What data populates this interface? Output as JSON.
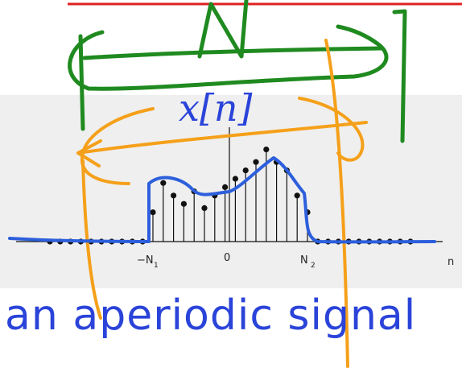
{
  "slide": {
    "signal_label": "x[n]",
    "caption": "an aperiodic signal",
    "caption_color": "#2a43d9",
    "label_color": "#2a43d9"
  },
  "chart_data": {
    "type": "stem",
    "x_axis_label": "n",
    "ticks": [
      {
        "main": "−N",
        "sub": "1"
      },
      {
        "main": "0",
        "sub": ""
      },
      {
        "main": "N",
        "sub": "2"
      }
    ],
    "stem_values": [
      7,
      14,
      11,
      9,
      12,
      8,
      11,
      13,
      15,
      17,
      19,
      22,
      19,
      17,
      11,
      7
    ],
    "zero_samples_left": 10,
    "zero_samples_right": 10
  },
  "annotations": {
    "red_line_color": "#e02020",
    "green_color": "#1f8a1f",
    "orange_color": "#f5a01a",
    "blue_color": "#2d5fdc"
  }
}
